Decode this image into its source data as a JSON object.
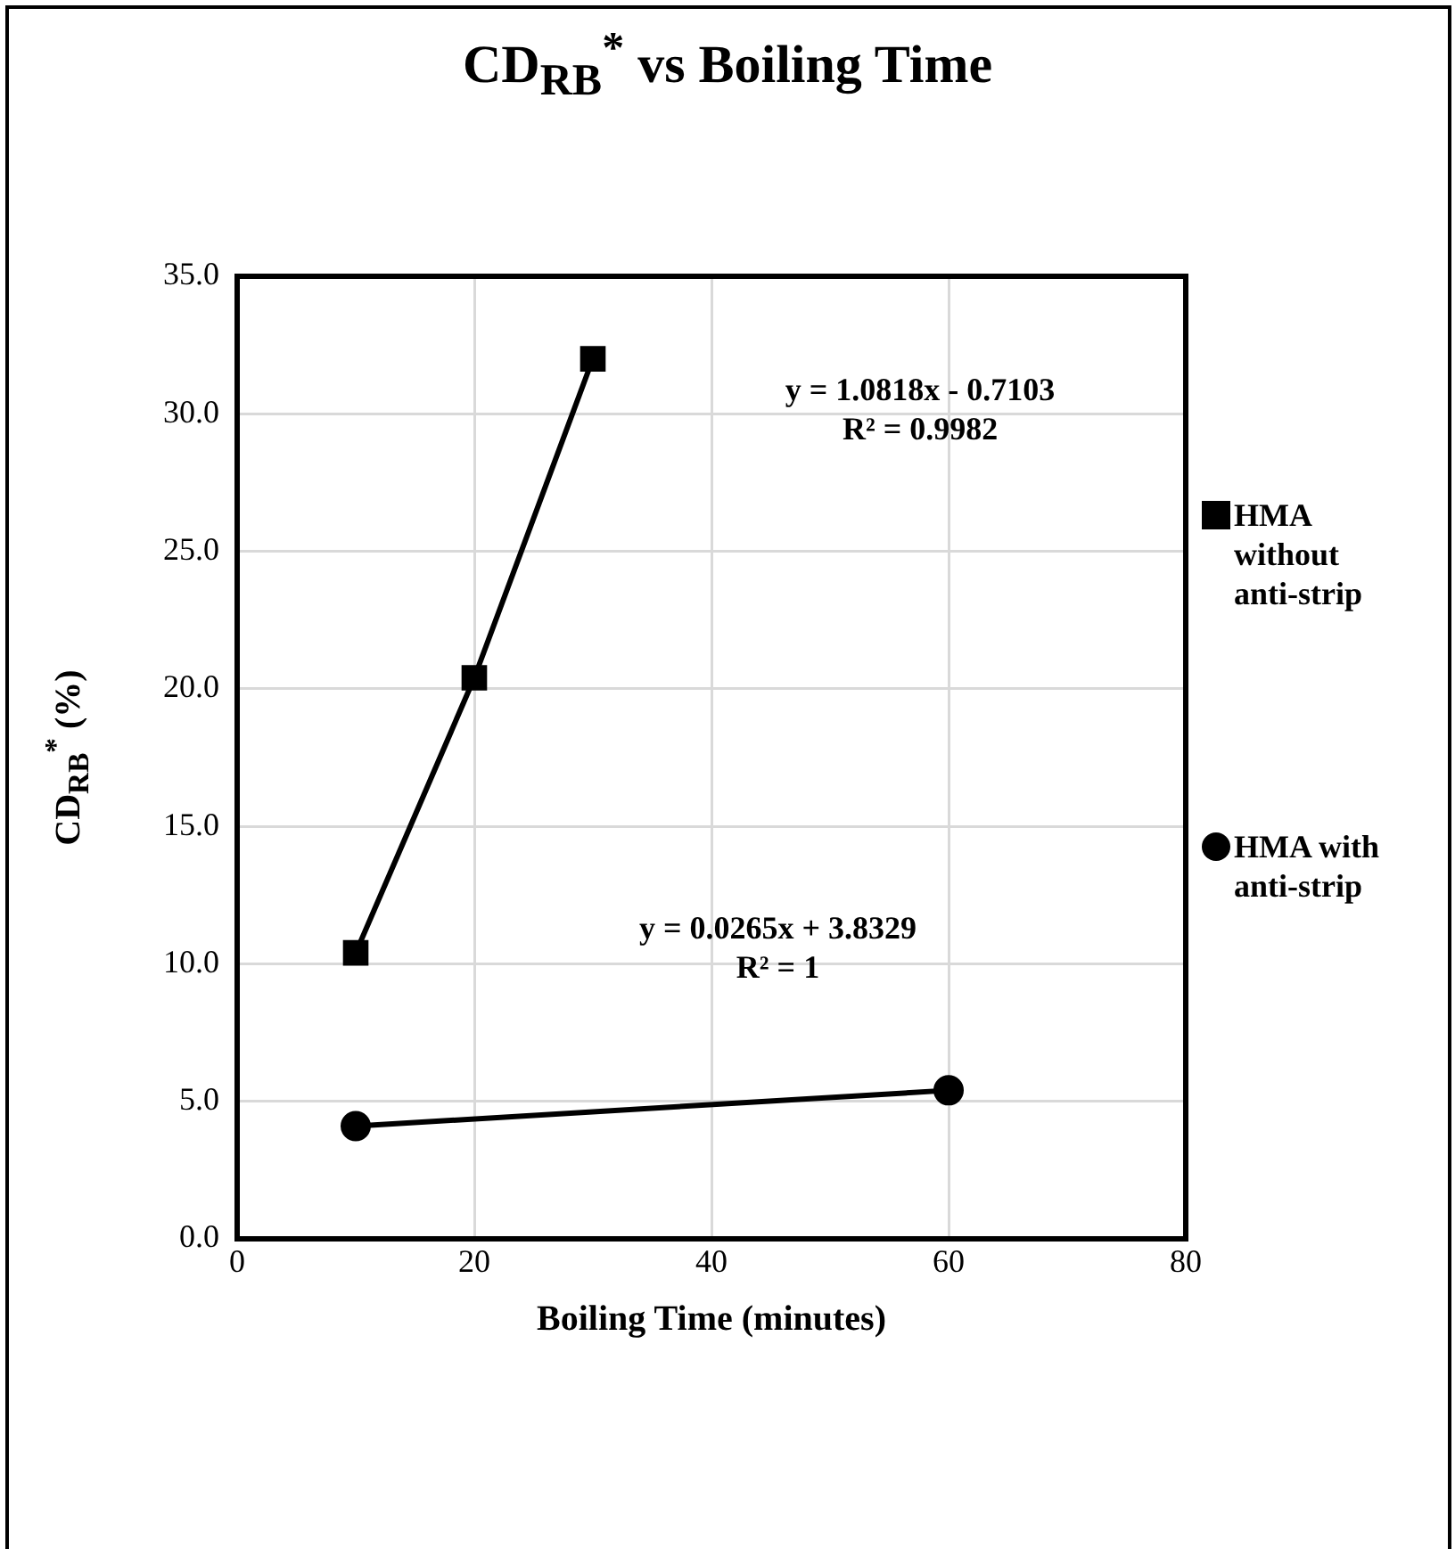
{
  "chart_data": {
    "type": "line",
    "title": "CD$_{RB}$$^{*}$ vs Boiling Time",
    "xlabel": "Boiling Time (minutes)",
    "ylabel": "CD$_{RB}$$^{*}$ (%)",
    "series": [
      {
        "name": "HMA without anti-strip",
        "color": "#000000",
        "marker": "square",
        "x": [
          10,
          20,
          30
        ],
        "values": [
          10.4,
          20.4,
          32.0
        ]
      },
      {
        "name": "HMA with anti-strip",
        "color": "#000000",
        "marker": "circle",
        "x": [
          10,
          60
        ],
        "values": [
          4.1,
          5.4
        ]
      }
    ],
    "xlim": [
      0,
      80
    ],
    "xticks": [
      0,
      20,
      40,
      60,
      80
    ],
    "ylim": [
      0,
      35
    ],
    "yticks": [
      {
        "value": 0,
        "label": "0.0"
      },
      {
        "value": 5,
        "label": "5.0"
      },
      {
        "value": 10,
        "label": "10.0"
      },
      {
        "value": 15,
        "label": "15.0"
      },
      {
        "value": 20,
        "label": "20.0"
      },
      {
        "value": 25,
        "label": "25.0"
      },
      {
        "value": 30,
        "label": "30.0"
      },
      {
        "value": 35,
        "label": "35.0"
      }
    ],
    "grid": true,
    "legend": "right",
    "line_style": "solid",
    "annotations": [
      "y = 1.0818x - 0.7103\nR² = 0.9982",
      "y = 0.0265x + 3.8329\nR² = 1"
    ]
  }
}
